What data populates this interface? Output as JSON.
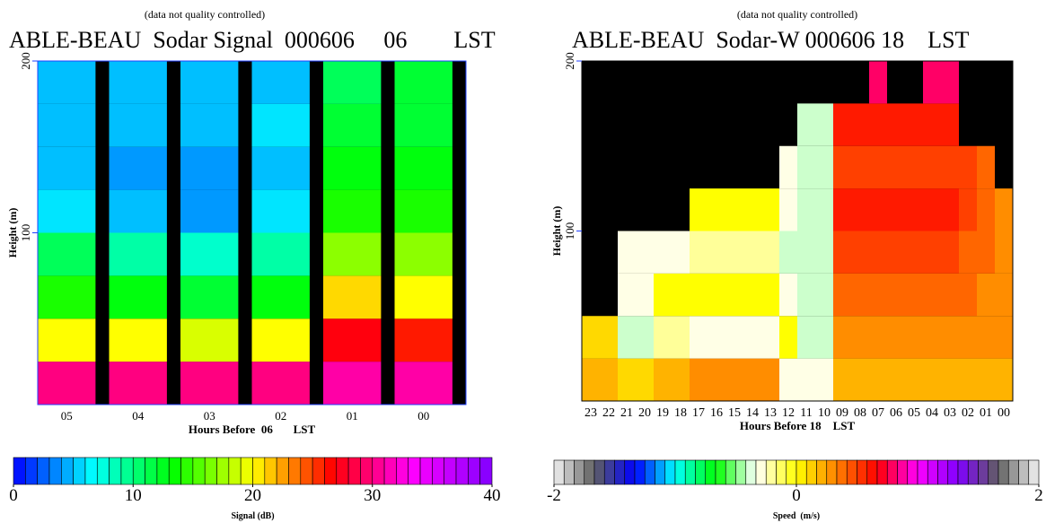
{
  "chart_data": [
    {
      "type": "heatmap",
      "subtitle": "(data not quality controlled)",
      "title": "ABLE-BEAU  Sodar Signal  000606     06        LST",
      "x_label": "Hours Before  06       LST",
      "y_label": "Height (m)",
      "categories": [
        "05",
        "04",
        "03",
        "02",
        "01",
        "00"
      ],
      "y_bins": [
        0,
        25,
        50,
        75,
        100,
        125,
        150,
        175,
        200
      ],
      "ylim": [
        0,
        200
      ],
      "yticks": [
        100,
        200
      ],
      "values": [
        [
          30,
          20,
          14,
          11,
          6,
          5,
          5,
          5
        ],
        [
          30,
          20,
          13,
          9,
          5,
          4,
          5,
          5
        ],
        [
          30,
          19,
          12,
          8,
          4,
          4,
          5,
          5
        ],
        [
          30,
          20,
          13,
          9,
          6,
          5,
          6,
          5
        ],
        [
          31,
          27,
          21,
          17,
          14,
          13,
          12,
          11
        ],
        [
          31,
          26,
          20,
          17,
          14,
          13,
          12,
          12
        ]
      ],
      "colorbar": {
        "label": "Signal (dB)",
        "lim": [
          0,
          40
        ],
        "ticks": [
          0,
          10,
          20,
          30,
          40
        ],
        "segments": 40,
        "colors": [
          "#0000ff",
          "#00ffff",
          "#00ff00",
          "#ffff00",
          "#ff0000",
          "#ff00ff",
          "#8000ff"
        ]
      }
    },
    {
      "type": "heatmap",
      "subtitle": "(data not quality controlled)",
      "title": "ABLE-BEAU  Sodar-W 000606 18    LST",
      "x_label": "Hours Before 18    LST",
      "y_label": "Height (m)",
      "categories": [
        "23",
        "22",
        "21",
        "20",
        "19",
        "18",
        "17",
        "16",
        "15",
        "14",
        "13",
        "12",
        "11",
        "10",
        "09",
        "08",
        "07",
        "06",
        "05",
        "04",
        "03",
        "02",
        "01",
        "00"
      ],
      "y_bins": [
        0,
        25,
        50,
        75,
        100,
        125,
        150,
        175,
        200
      ],
      "ylim": [
        0,
        200
      ],
      "yticks": [
        100,
        200
      ],
      "values": [
        [
          0.2,
          0.1,
          null,
          null,
          null,
          null,
          null,
          null
        ],
        [
          0.2,
          0.1,
          null,
          null,
          null,
          null,
          null,
          null
        ],
        [
          0.1,
          -0.4,
          -0.3,
          -0.3,
          null,
          null,
          null,
          null
        ],
        [
          0.1,
          -0.4,
          -0.3,
          -0.3,
          null,
          null,
          null,
          null
        ],
        [
          0.2,
          -0.2,
          0,
          -0.3,
          null,
          null,
          null,
          null
        ],
        [
          0.2,
          -0.2,
          0,
          -0.3,
          null,
          null,
          null,
          null
        ],
        [
          0.3,
          -0.3,
          0,
          -0.2,
          0,
          null,
          null,
          null
        ],
        [
          0.3,
          -0.3,
          0,
          -0.2,
          0,
          null,
          null,
          null
        ],
        [
          0.3,
          -0.3,
          0,
          -0.2,
          0,
          null,
          null,
          null
        ],
        [
          0.3,
          -0.3,
          0,
          -0.2,
          0,
          null,
          null,
          null
        ],
        [
          0.3,
          -0.3,
          0,
          -0.2,
          0,
          null,
          null,
          null
        ],
        [
          -0.3,
          0,
          -0.3,
          -0.4,
          -0.3,
          -0.3,
          null,
          null
        ],
        [
          -0.3,
          -0.4,
          -0.4,
          -0.4,
          -0.4,
          -0.4,
          -0.4,
          null
        ],
        [
          -0.3,
          -0.4,
          -0.4,
          -0.4,
          -0.4,
          -0.4,
          -0.4,
          null
        ],
        [
          0.2,
          0.3,
          0.4,
          0.5,
          0.6,
          0.5,
          0.6,
          null
        ],
        [
          0.2,
          0.3,
          0.4,
          0.5,
          0.6,
          0.5,
          0.6,
          null
        ],
        [
          0.2,
          0.3,
          0.4,
          0.5,
          0.6,
          0.5,
          0.6,
          0.8
        ],
        [
          0.2,
          0.3,
          0.4,
          0.5,
          0.6,
          0.5,
          0.6,
          null
        ],
        [
          0.2,
          0.3,
          0.4,
          0.5,
          0.6,
          0.5,
          0.6,
          null
        ],
        [
          0.2,
          0.3,
          0.4,
          0.5,
          0.6,
          0.5,
          0.6,
          0.8
        ],
        [
          0.2,
          0.3,
          0.4,
          0.5,
          0.6,
          0.5,
          0.6,
          0.8
        ],
        [
          0.2,
          0.3,
          0.4,
          0.4,
          0.5,
          0.5,
          null,
          null
        ],
        [
          0.2,
          0.3,
          0.3,
          0.4,
          0.4,
          0.4,
          null,
          null
        ],
        [
          0.2,
          0.3,
          0.3,
          0.3,
          0.3,
          null,
          null,
          null
        ]
      ],
      "colorbar": {
        "label": "Speed  (m/s)",
        "lim": [
          -2,
          2
        ],
        "ticks": [
          -2,
          0,
          2
        ],
        "segments": 48,
        "colors": [
          "#f4f4f4",
          "#606060",
          "#0000ff",
          "#00ffff",
          "#00ff00",
          "#ffffff",
          "#ffff00",
          "#ff8000",
          "#ff0000",
          "#ff00ff",
          "#8000ff",
          "#606060",
          "#f4f4f4"
        ]
      }
    }
  ]
}
